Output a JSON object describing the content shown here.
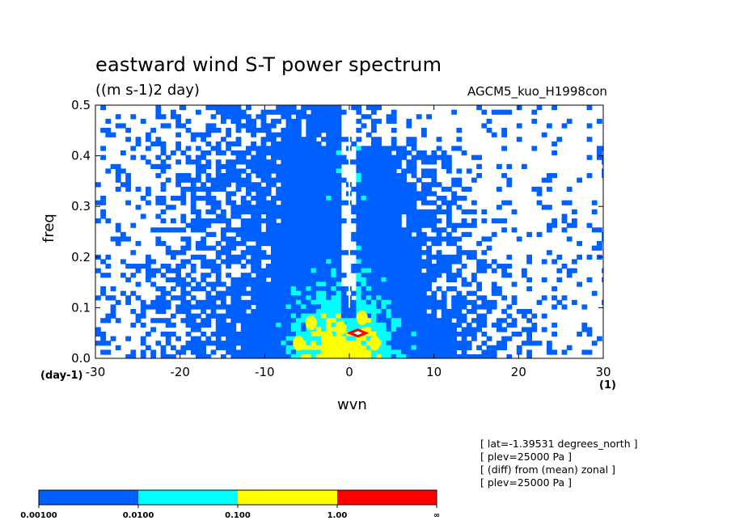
{
  "chart_data": {
    "type": "heatmap",
    "title": "eastward wind S-T power spectrum",
    "units": "((m s-1)2 day)",
    "run_name": "AGCM5_kuo_H1998con",
    "xlabel": "wvn",
    "xunit": "(1)",
    "ylabel": "freq",
    "yunit": "(day-1)",
    "xlim": [
      -30,
      30
    ],
    "ylim": [
      0.0,
      0.5
    ],
    "xticks": [
      -30,
      -20,
      -10,
      0,
      10,
      20,
      30
    ],
    "xtick_labels": [
      "-30",
      "-20",
      "-10",
      "0",
      "10",
      "20",
      "30"
    ],
    "yticks": [
      0.0,
      0.1,
      0.2,
      0.3,
      0.4,
      0.5
    ],
    "ytick_labels": [
      "0.0",
      "0.1",
      "0.2",
      "0.3",
      "0.4",
      "0.5"
    ],
    "contour_levels": [
      0.001,
      0.01,
      0.1,
      1.0
    ],
    "colorbar": {
      "colors": [
        "#0060ff",
        "#00ffff",
        "#ffff00",
        "#ff0000"
      ],
      "labels": [
        "0.00100",
        "0.0100",
        "0.100",
        "1.00",
        "∞"
      ]
    },
    "regions": [
      {
        "level": 0,
        "x_range": [
          -28,
          -1
        ],
        "y_range": [
          0.0,
          0.5
        ],
        "note": "broad blue power, westward"
      },
      {
        "level": 0,
        "x_range": [
          1,
          27
        ],
        "y_range": [
          0.0,
          0.42
        ],
        "note": "broad blue power, eastward"
      },
      {
        "level": 1,
        "x_range": [
          -10,
          9
        ],
        "y_range": [
          0.0,
          0.22
        ],
        "note": "cyan core"
      },
      {
        "level": 2,
        "x_range": [
          -6,
          3
        ],
        "y_range": [
          0.0,
          0.09
        ],
        "note": "yellow patches"
      },
      {
        "level": 3,
        "x": 1,
        "y": 0.05,
        "note": "red peak"
      }
    ]
  },
  "annotations": [
    "[ lat=-1.39531 degrees_north ]",
    "[ plev=25000 Pa ]",
    "[ (diff) from (mean) zonal ]",
    "[ plev=25000 Pa ]"
  ]
}
